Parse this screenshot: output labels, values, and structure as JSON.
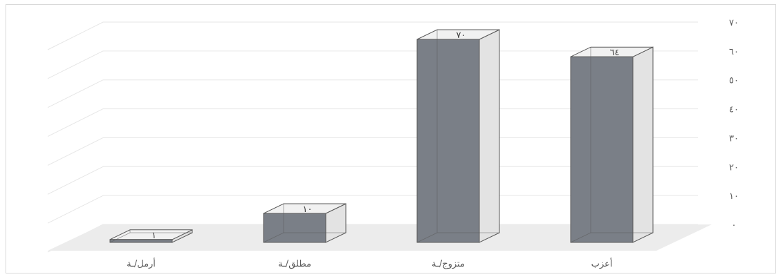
{
  "chart_data": {
    "type": "bar",
    "style": "3d-column",
    "categories": [
      "أعزب",
      "متزوج/ـة",
      "مطلق/ـة",
      "أرمل/ـة"
    ],
    "values": [
      64,
      70,
      10,
      1
    ],
    "data_labels": [
      "٦٤",
      "٧٠",
      "١٠",
      "١"
    ],
    "y_ticks": [
      "٠",
      "١٠",
      "٢٠",
      "٣٠",
      "٤٠",
      "٥٠",
      "٦٠",
      "٧٠"
    ],
    "ylim": [
      0,
      70
    ],
    "y_axis_side": "right",
    "category_order": "right-to-left",
    "grid": true,
    "legend": "none",
    "title": "",
    "xlabel": "",
    "ylabel": "",
    "colors": {
      "bar_front": "#7a7f87",
      "bar_side": "#e3e3e3",
      "bar_top": "#f1f1f1",
      "bar_edge": "#595959",
      "floor": "#ececec",
      "gridline": "#e6e6e6"
    }
  }
}
